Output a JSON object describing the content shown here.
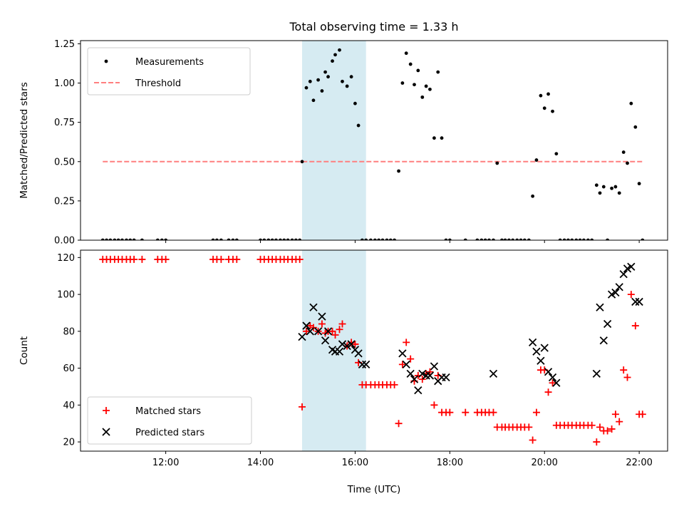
{
  "title": "Total observing time = 1.33 h",
  "colors": {
    "measurement": "#000000",
    "threshold": "#ff7f7f",
    "matched": "#ff0000",
    "predicted": "#000000",
    "span": "#add8e6"
  },
  "chart_data": [
    {
      "type": "scatter",
      "ylabel": "Matched/Predicted stars",
      "xlabel": "",
      "xlim": [
        10.2,
        22.6
      ],
      "ylim": [
        0,
        1.27
      ],
      "yticks": [
        0,
        0.25,
        0.5,
        0.75,
        1.0,
        1.25
      ],
      "ytick_labels": [
        "0.00",
        "0.25",
        "0.50",
        "0.75",
        "1.00",
        "1.25"
      ],
      "shaded_span": [
        14.88,
        16.23
      ],
      "legend": {
        "position": "upper left",
        "entries": [
          "Measurements",
          "Threshold"
        ]
      },
      "threshold": {
        "name": "Threshold",
        "y": 0.5,
        "x": [
          10.67,
          22.07
        ]
      },
      "series": [
        {
          "name": "Measurements",
          "x": [
            10.67,
            10.75,
            10.83,
            10.92,
            11.0,
            11.08,
            11.17,
            11.25,
            11.33,
            11.5,
            11.83,
            11.92,
            12.0,
            13.0,
            13.08,
            13.17,
            13.33,
            13.42,
            13.5,
            14.0,
            14.08,
            14.17,
            14.25,
            14.33,
            14.42,
            14.5,
            14.58,
            14.67,
            14.75,
            14.83,
            14.88,
            14.97,
            15.05,
            15.12,
            15.22,
            15.3,
            15.37,
            15.43,
            15.52,
            15.58,
            15.67,
            15.73,
            15.83,
            15.92,
            16.0,
            16.07,
            16.15,
            16.23,
            16.33,
            16.42,
            16.5,
            16.58,
            16.67,
            16.75,
            16.83,
            16.92,
            17.0,
            17.08,
            17.17,
            17.25,
            17.33,
            17.42,
            17.5,
            17.58,
            17.67,
            17.75,
            17.83,
            17.92,
            18.0,
            18.33,
            18.58,
            18.67,
            18.75,
            18.83,
            18.92,
            19.0,
            19.1,
            19.17,
            19.25,
            19.33,
            19.42,
            19.5,
            19.58,
            19.67,
            19.75,
            19.83,
            19.92,
            20.0,
            20.08,
            20.17,
            20.25,
            20.33,
            20.42,
            20.5,
            20.58,
            20.67,
            20.75,
            20.83,
            20.92,
            21.0,
            21.1,
            21.17,
            21.25,
            21.33,
            21.42,
            21.5,
            21.58,
            21.67,
            21.75,
            21.83,
            21.92,
            22.0,
            22.07
          ],
          "y": [
            0,
            0,
            0,
            0,
            0,
            0,
            0,
            0,
            0,
            0,
            0,
            0,
            0,
            0,
            0,
            0,
            0,
            0,
            0,
            0,
            0,
            0,
            0,
            0,
            0,
            0,
            0,
            0,
            0,
            0,
            0.5,
            0.97,
            1.01,
            0.89,
            1.02,
            0.95,
            1.07,
            1.04,
            1.14,
            1.18,
            1.21,
            1.01,
            0.98,
            1.04,
            0.87,
            0.73,
            0,
            0,
            0,
            0,
            0,
            0,
            0,
            0,
            0,
            0.44,
            1.0,
            1.19,
            1.12,
            0.99,
            1.08,
            0.91,
            0.98,
            0.96,
            0.65,
            1.07,
            0.65,
            0,
            0,
            0,
            0,
            0,
            0,
            0,
            0,
            0.49,
            0,
            0,
            0,
            0,
            0,
            0,
            0,
            0,
            0.28,
            0.51,
            0.92,
            0.84,
            0.93,
            0.82,
            0.55,
            0,
            0,
            0,
            0,
            0,
            0,
            0,
            0,
            0,
            0.35,
            0.3,
            0.34,
            0,
            0.33,
            0.34,
            0.3,
            0.56,
            0.49,
            0.87,
            0.72,
            0.36,
            0
          ]
        }
      ]
    },
    {
      "type": "scatter",
      "ylabel": "Count",
      "xlabel": "Time (UTC)",
      "xlim": [
        10.2,
        22.6
      ],
      "ylim": [
        15,
        124
      ],
      "yticks": [
        20,
        40,
        60,
        80,
        100,
        120
      ],
      "ytick_labels": [
        "20",
        "40",
        "60",
        "80",
        "100",
        "120"
      ],
      "xticks": [
        12,
        14,
        16,
        18,
        20,
        22
      ],
      "xtick_labels": [
        "12:00",
        "14:00",
        "16:00",
        "18:00",
        "20:00",
        "22:00"
      ],
      "shaded_span": [
        14.88,
        16.23
      ],
      "legend": {
        "position": "lower left",
        "entries": [
          "Matched stars",
          "Predicted stars"
        ]
      },
      "series": [
        {
          "name": "Matched stars",
          "x": [
            10.67,
            10.75,
            10.83,
            10.92,
            11.0,
            11.08,
            11.17,
            11.25,
            11.33,
            11.5,
            11.83,
            11.92,
            12.0,
            13.0,
            13.08,
            13.17,
            13.33,
            13.42,
            13.5,
            14.0,
            14.08,
            14.17,
            14.25,
            14.33,
            14.42,
            14.5,
            14.58,
            14.67,
            14.75,
            14.83,
            14.88,
            14.97,
            15.05,
            15.12,
            15.22,
            15.3,
            15.37,
            15.43,
            15.52,
            15.58,
            15.67,
            15.73,
            15.83,
            15.92,
            16.0,
            16.07,
            16.15,
            16.23,
            16.33,
            16.42,
            16.5,
            16.58,
            16.67,
            16.75,
            16.83,
            16.92,
            17.0,
            17.08,
            17.17,
            17.25,
            17.33,
            17.42,
            17.5,
            17.58,
            17.67,
            17.75,
            17.83,
            17.92,
            18.0,
            18.33,
            18.58,
            18.67,
            18.75,
            18.83,
            18.92,
            19.0,
            19.1,
            19.17,
            19.25,
            19.33,
            19.42,
            19.5,
            19.58,
            19.67,
            19.75,
            19.83,
            19.92,
            20.0,
            20.08,
            20.17,
            20.25,
            20.33,
            20.42,
            20.5,
            20.58,
            20.67,
            20.75,
            20.83,
            20.92,
            21.0,
            21.1,
            21.17,
            21.25,
            21.33,
            21.42,
            21.5,
            21.58,
            21.67,
            21.75,
            21.83,
            21.92,
            22.0,
            22.07
          ],
          "y": [
            119,
            119,
            119,
            119,
            119,
            119,
            119,
            119,
            119,
            119,
            119,
            119,
            119,
            119,
            119,
            119,
            119,
            119,
            119,
            119,
            119,
            119,
            119,
            119,
            119,
            119,
            119,
            119,
            119,
            119,
            39,
            80,
            83,
            82,
            80,
            84,
            79,
            80,
            80,
            78,
            81,
            84,
            72,
            74,
            73,
            63,
            51,
            51,
            51,
            51,
            51,
            51,
            51,
            51,
            51,
            30,
            62,
            74,
            65,
            53,
            56,
            54,
            57,
            58,
            40,
            56,
            36,
            36,
            36,
            36,
            36,
            36,
            36,
            36,
            36,
            28,
            28,
            28,
            28,
            28,
            28,
            28,
            28,
            28,
            21,
            36,
            59,
            59,
            47,
            52,
            29,
            29,
            29,
            29,
            29,
            29,
            29,
            29,
            29,
            29,
            20,
            28,
            26,
            26,
            27,
            35,
            31,
            59,
            55,
            100,
            83,
            35,
            35
          ]
        },
        {
          "name": "Predicted stars",
          "x": [
            14.88,
            14.97,
            15.05,
            15.12,
            15.22,
            15.3,
            15.37,
            15.43,
            15.52,
            15.58,
            15.67,
            15.73,
            15.83,
            15.92,
            16.0,
            16.07,
            16.15,
            16.23,
            17.0,
            17.08,
            17.17,
            17.25,
            17.33,
            17.42,
            17.5,
            17.58,
            17.67,
            17.75,
            17.83,
            17.92,
            18.92,
            19.75,
            19.83,
            19.92,
            20.0,
            20.08,
            20.17,
            20.25,
            21.1,
            21.17,
            21.25,
            21.33,
            21.42,
            21.5,
            21.58,
            21.67,
            21.75,
            21.83,
            21.92,
            22.0
          ],
          "y": [
            77,
            83,
            80,
            93,
            80,
            88,
            75,
            80,
            70,
            69,
            69,
            73,
            72,
            73,
            70,
            68,
            62,
            62,
            68,
            62,
            57,
            54,
            48,
            57,
            56,
            56,
            61,
            53,
            55,
            55,
            57,
            74,
            69,
            64,
            71,
            58,
            55,
            52,
            57,
            93,
            75,
            84,
            100,
            101,
            104,
            111,
            114,
            115,
            96,
            96
          ]
        }
      ]
    }
  ]
}
